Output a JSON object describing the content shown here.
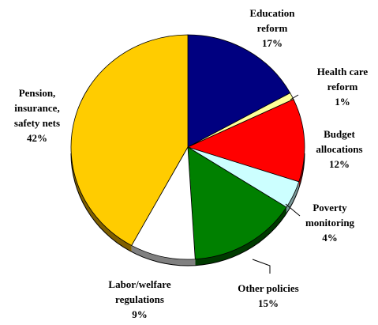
{
  "chart_data": {
    "type": "pie",
    "title": "",
    "unit": "%",
    "slices": [
      {
        "name": "Education reform",
        "label_lines": [
          "Education",
          "reform"
        ],
        "value": 17,
        "value_label": "17%",
        "color": "#000080",
        "side_color": "#00003a"
      },
      {
        "name": "Health care reform",
        "label_lines": [
          "Health care",
          "reform"
        ],
        "value": 1,
        "value_label": "1%",
        "color": "#ffff99",
        "side_color": "#9a9a55"
      },
      {
        "name": "Budget allocations",
        "label_lines": [
          "Budget",
          "allocations"
        ],
        "value": 12,
        "value_label": "12%",
        "color": "#ff0000",
        "side_color": "#8a0000"
      },
      {
        "name": "Poverty monitoring",
        "label_lines": [
          "Poverty",
          "monitoring"
        ],
        "value": 4,
        "value_label": "4%",
        "color": "#ccffff",
        "side_color": "#7a9999"
      },
      {
        "name": "Other policies",
        "label_lines": [
          "Other policies"
        ],
        "value": 15,
        "value_label": "15%",
        "color": "#008000",
        "side_color": "#003a00"
      },
      {
        "name": "Labor/welfare regulations",
        "label_lines": [
          "Labor/welfare",
          "regulations"
        ],
        "value": 9,
        "value_label": "9%",
        "color": "#ffffff",
        "side_color": "#808080"
      },
      {
        "name": "Pension, insurance, safety nets",
        "label_lines": [
          "Pension,",
          "insurance,",
          "safety nets"
        ],
        "value": 42,
        "value_label": "42%",
        "color": "#ffcc00",
        "side_color": "#806000"
      }
    ]
  }
}
